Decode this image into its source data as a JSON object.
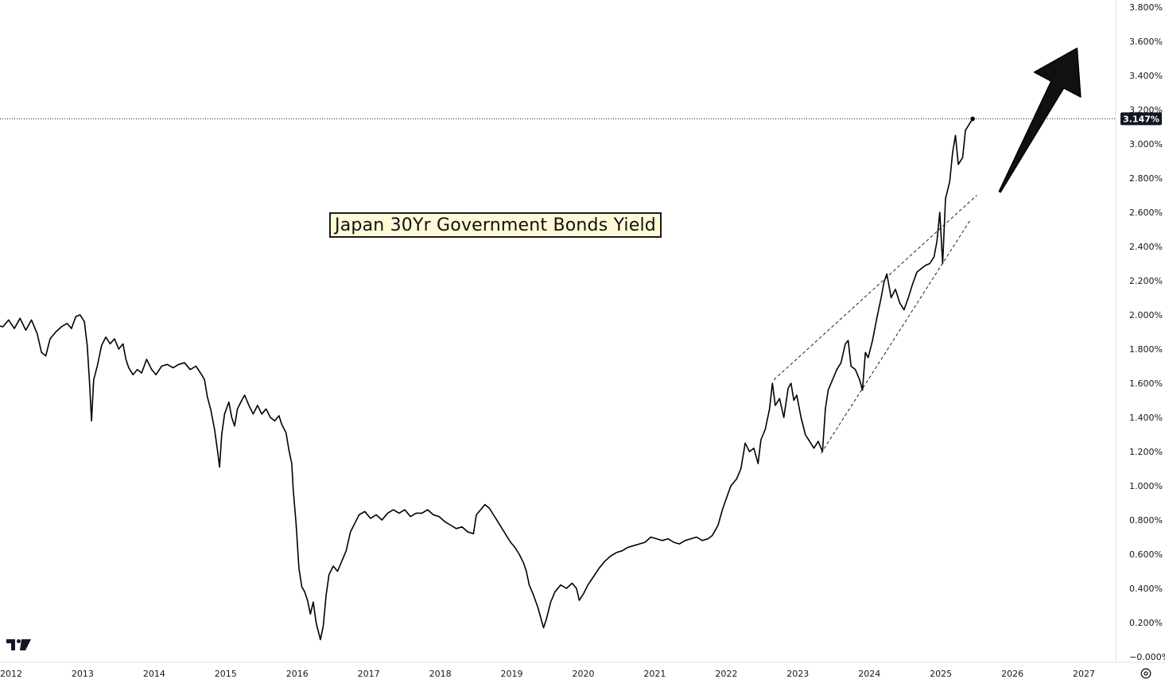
{
  "chart_data": {
    "type": "line",
    "title": "Japan 30Yr Government Bonds Yield",
    "xlabel": "",
    "ylabel": "",
    "y_unit": "%",
    "xlim": [
      2012.0,
      2027.6
    ],
    "ylim": [
      0.0,
      3.8
    ],
    "x_ticks": [
      "2012",
      "2013",
      "2014",
      "2015",
      "2016",
      "2017",
      "2018",
      "2019",
      "2020",
      "2021",
      "2022",
      "2023",
      "2024",
      "2025",
      "2026",
      "2027"
    ],
    "y_ticks": [
      "3.800%",
      "3.600%",
      "3.400%",
      "3.200%",
      "3.000%",
      "2.800%",
      "2.600%",
      "2.400%",
      "2.200%",
      "2.000%",
      "1.800%",
      "1.600%",
      "1.400%",
      "1.200%",
      "1.000%",
      "0.800%",
      "0.600%",
      "0.400%",
      "0.200%",
      "−0.000%"
    ],
    "grid": false,
    "last_value": 3.147,
    "last_value_label": "3.147%",
    "line_color": "#000000",
    "series": [
      {
        "values": [
          [
            2011.86,
            1.88
          ],
          [
            2011.95,
            1.94
          ],
          [
            2012.04,
            1.93
          ],
          [
            2012.12,
            1.97
          ],
          [
            2012.2,
            1.92
          ],
          [
            2012.28,
            1.98
          ],
          [
            2012.36,
            1.91
          ],
          [
            2012.44,
            1.97
          ],
          [
            2012.52,
            1.89
          ],
          [
            2012.58,
            1.78
          ],
          [
            2012.64,
            1.76
          ],
          [
            2012.7,
            1.86
          ],
          [
            2012.78,
            1.9
          ],
          [
            2012.86,
            1.93
          ],
          [
            2012.94,
            1.95
          ],
          [
            2013.0,
            1.92
          ],
          [
            2013.06,
            1.99
          ],
          [
            2013.12,
            2.0
          ],
          [
            2013.18,
            1.96
          ],
          [
            2013.22,
            1.82
          ],
          [
            2013.25,
            1.62
          ],
          [
            2013.28,
            1.38
          ],
          [
            2013.31,
            1.62
          ],
          [
            2013.36,
            1.7
          ],
          [
            2013.42,
            1.82
          ],
          [
            2013.48,
            1.87
          ],
          [
            2013.54,
            1.83
          ],
          [
            2013.6,
            1.86
          ],
          [
            2013.66,
            1.8
          ],
          [
            2013.72,
            1.83
          ],
          [
            2013.76,
            1.74
          ],
          [
            2013.8,
            1.69
          ],
          [
            2013.86,
            1.65
          ],
          [
            2013.92,
            1.68
          ],
          [
            2013.98,
            1.66
          ],
          [
            2014.05,
            1.74
          ],
          [
            2014.12,
            1.68
          ],
          [
            2014.18,
            1.65
          ],
          [
            2014.26,
            1.7
          ],
          [
            2014.34,
            1.71
          ],
          [
            2014.42,
            1.69
          ],
          [
            2014.5,
            1.71
          ],
          [
            2014.58,
            1.72
          ],
          [
            2014.66,
            1.68
          ],
          [
            2014.74,
            1.7
          ],
          [
            2014.82,
            1.65
          ],
          [
            2014.86,
            1.62
          ],
          [
            2014.9,
            1.52
          ],
          [
            2014.95,
            1.44
          ],
          [
            2015.0,
            1.33
          ],
          [
            2015.04,
            1.21
          ],
          [
            2015.07,
            1.11
          ],
          [
            2015.1,
            1.3
          ],
          [
            2015.14,
            1.42
          ],
          [
            2015.2,
            1.49
          ],
          [
            2015.24,
            1.4
          ],
          [
            2015.28,
            1.35
          ],
          [
            2015.32,
            1.45
          ],
          [
            2015.38,
            1.5
          ],
          [
            2015.42,
            1.53
          ],
          [
            2015.48,
            1.47
          ],
          [
            2015.54,
            1.42
          ],
          [
            2015.6,
            1.47
          ],
          [
            2015.66,
            1.42
          ],
          [
            2015.72,
            1.45
          ],
          [
            2015.78,
            1.4
          ],
          [
            2015.84,
            1.38
          ],
          [
            2015.9,
            1.41
          ],
          [
            2015.94,
            1.36
          ],
          [
            2016.0,
            1.31
          ],
          [
            2016.04,
            1.21
          ],
          [
            2016.08,
            1.13
          ],
          [
            2016.1,
            0.98
          ],
          [
            2016.14,
            0.78
          ],
          [
            2016.18,
            0.52
          ],
          [
            2016.22,
            0.41
          ],
          [
            2016.26,
            0.38
          ],
          [
            2016.3,
            0.33
          ],
          [
            2016.34,
            0.25
          ],
          [
            2016.38,
            0.32
          ],
          [
            2016.42,
            0.2
          ],
          [
            2016.48,
            0.1
          ],
          [
            2016.52,
            0.18
          ],
          [
            2016.56,
            0.36
          ],
          [
            2016.6,
            0.48
          ],
          [
            2016.66,
            0.53
          ],
          [
            2016.72,
            0.5
          ],
          [
            2016.78,
            0.56
          ],
          [
            2016.84,
            0.62
          ],
          [
            2016.9,
            0.73
          ],
          [
            2016.96,
            0.78
          ],
          [
            2017.02,
            0.83
          ],
          [
            2017.1,
            0.85
          ],
          [
            2017.18,
            0.81
          ],
          [
            2017.26,
            0.83
          ],
          [
            2017.34,
            0.8
          ],
          [
            2017.42,
            0.84
          ],
          [
            2017.5,
            0.86
          ],
          [
            2017.58,
            0.84
          ],
          [
            2017.66,
            0.86
          ],
          [
            2017.74,
            0.82
          ],
          [
            2017.82,
            0.84
          ],
          [
            2017.9,
            0.84
          ],
          [
            2017.98,
            0.86
          ],
          [
            2018.06,
            0.83
          ],
          [
            2018.14,
            0.82
          ],
          [
            2018.22,
            0.79
          ],
          [
            2018.3,
            0.77
          ],
          [
            2018.38,
            0.75
          ],
          [
            2018.46,
            0.76
          ],
          [
            2018.54,
            0.73
          ],
          [
            2018.62,
            0.72
          ],
          [
            2018.66,
            0.83
          ],
          [
            2018.72,
            0.86
          ],
          [
            2018.78,
            0.89
          ],
          [
            2018.84,
            0.87
          ],
          [
            2018.9,
            0.83
          ],
          [
            2018.96,
            0.79
          ],
          [
            2019.02,
            0.75
          ],
          [
            2019.08,
            0.71
          ],
          [
            2019.14,
            0.67
          ],
          [
            2019.2,
            0.64
          ],
          [
            2019.26,
            0.6
          ],
          [
            2019.32,
            0.55
          ],
          [
            2019.36,
            0.5
          ],
          [
            2019.4,
            0.42
          ],
          [
            2019.46,
            0.36
          ],
          [
            2019.52,
            0.29
          ],
          [
            2019.56,
            0.23
          ],
          [
            2019.6,
            0.17
          ],
          [
            2019.64,
            0.22
          ],
          [
            2019.7,
            0.32
          ],
          [
            2019.76,
            0.38
          ],
          [
            2019.84,
            0.42
          ],
          [
            2019.92,
            0.4
          ],
          [
            2020.0,
            0.43
          ],
          [
            2020.06,
            0.4
          ],
          [
            2020.1,
            0.33
          ],
          [
            2020.16,
            0.37
          ],
          [
            2020.22,
            0.42
          ],
          [
            2020.3,
            0.47
          ],
          [
            2020.38,
            0.52
          ],
          [
            2020.46,
            0.56
          ],
          [
            2020.54,
            0.59
          ],
          [
            2020.62,
            0.61
          ],
          [
            2020.7,
            0.62
          ],
          [
            2020.78,
            0.64
          ],
          [
            2020.86,
            0.65
          ],
          [
            2020.94,
            0.66
          ],
          [
            2021.02,
            0.67
          ],
          [
            2021.1,
            0.7
          ],
          [
            2021.18,
            0.69
          ],
          [
            2021.26,
            0.68
          ],
          [
            2021.34,
            0.69
          ],
          [
            2021.42,
            0.67
          ],
          [
            2021.5,
            0.66
          ],
          [
            2021.58,
            0.68
          ],
          [
            2021.66,
            0.69
          ],
          [
            2021.74,
            0.7
          ],
          [
            2021.82,
            0.68
          ],
          [
            2021.9,
            0.69
          ],
          [
            2021.96,
            0.71
          ],
          [
            2022.04,
            0.77
          ],
          [
            2022.1,
            0.86
          ],
          [
            2022.16,
            0.93
          ],
          [
            2022.22,
            1.0
          ],
          [
            2022.3,
            1.04
          ],
          [
            2022.36,
            1.1
          ],
          [
            2022.42,
            1.25
          ],
          [
            2022.48,
            1.2
          ],
          [
            2022.54,
            1.22
          ],
          [
            2022.6,
            1.13
          ],
          [
            2022.64,
            1.27
          ],
          [
            2022.7,
            1.33
          ],
          [
            2022.76,
            1.45
          ],
          [
            2022.8,
            1.6
          ],
          [
            2022.84,
            1.47
          ],
          [
            2022.9,
            1.51
          ],
          [
            2022.96,
            1.4
          ],
          [
            2023.02,
            1.57
          ],
          [
            2023.06,
            1.6
          ],
          [
            2023.1,
            1.5
          ],
          [
            2023.14,
            1.53
          ],
          [
            2023.2,
            1.4
          ],
          [
            2023.26,
            1.3
          ],
          [
            2023.32,
            1.26
          ],
          [
            2023.38,
            1.22
          ],
          [
            2023.44,
            1.26
          ],
          [
            2023.5,
            1.2
          ],
          [
            2023.54,
            1.45
          ],
          [
            2023.58,
            1.56
          ],
          [
            2023.64,
            1.62
          ],
          [
            2023.7,
            1.68
          ],
          [
            2023.76,
            1.72
          ],
          [
            2023.82,
            1.83
          ],
          [
            2023.86,
            1.85
          ],
          [
            2023.9,
            1.7
          ],
          [
            2023.96,
            1.68
          ],
          [
            2024.02,
            1.62
          ],
          [
            2024.06,
            1.56
          ],
          [
            2024.1,
            1.78
          ],
          [
            2024.14,
            1.75
          ],
          [
            2024.2,
            1.85
          ],
          [
            2024.26,
            1.98
          ],
          [
            2024.32,
            2.1
          ],
          [
            2024.36,
            2.19
          ],
          [
            2024.4,
            2.24
          ],
          [
            2024.46,
            2.1
          ],
          [
            2024.52,
            2.15
          ],
          [
            2024.58,
            2.07
          ],
          [
            2024.64,
            2.03
          ],
          [
            2024.7,
            2.1
          ],
          [
            2024.76,
            2.18
          ],
          [
            2024.82,
            2.25
          ],
          [
            2024.88,
            2.27
          ],
          [
            2024.94,
            2.29
          ],
          [
            2025.0,
            2.3
          ],
          [
            2025.06,
            2.34
          ],
          [
            2025.1,
            2.43
          ],
          [
            2025.14,
            2.6
          ],
          [
            2025.18,
            2.3
          ],
          [
            2025.22,
            2.68
          ],
          [
            2025.28,
            2.78
          ],
          [
            2025.32,
            2.95
          ],
          [
            2025.36,
            3.05
          ],
          [
            2025.4,
            2.88
          ],
          [
            2025.46,
            2.92
          ],
          [
            2025.5,
            3.08
          ],
          [
            2025.56,
            3.12
          ],
          [
            2025.6,
            3.147
          ]
        ]
      }
    ],
    "annotations": [
      {
        "type": "dashed-line",
        "from": [
          2022.82,
          1.62
        ],
        "to": [
          2025.66,
          2.7
        ]
      },
      {
        "type": "dashed-line",
        "from": [
          2023.48,
          1.19
        ],
        "to": [
          2025.56,
          2.55
        ]
      },
      {
        "type": "arrow",
        "color": "#111111",
        "from": [
          2025.98,
          2.72
        ],
        "to": [
          2027.06,
          3.56
        ]
      },
      {
        "type": "horizontal-dotted-line",
        "y": 3.147
      }
    ]
  },
  "branding": {
    "logo": "tv-logo-icon"
  },
  "controls": {
    "settings_icon": "gear-icon"
  }
}
